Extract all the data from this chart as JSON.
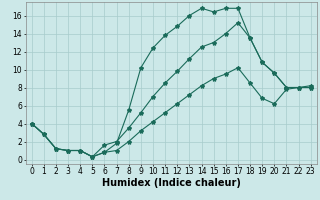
{
  "xlabel": "Humidex (Indice chaleur)",
  "background_color": "#cce8e8",
  "grid_color": "#a8cccc",
  "line_color": "#1a6b5a",
  "xlim": [
    -0.5,
    23.5
  ],
  "ylim": [
    -0.5,
    17.5
  ],
  "xticks": [
    0,
    1,
    2,
    3,
    4,
    5,
    6,
    7,
    8,
    9,
    10,
    11,
    12,
    13,
    14,
    15,
    16,
    17,
    18,
    19,
    20,
    21,
    22,
    23
  ],
  "yticks": [
    0,
    2,
    4,
    6,
    8,
    10,
    12,
    14,
    16
  ],
  "line1_x": [
    0,
    1,
    2,
    3,
    4,
    5,
    6,
    7,
    8,
    9,
    10,
    11,
    12,
    13,
    14,
    15,
    16,
    17,
    18,
    19,
    20,
    21,
    22,
    23
  ],
  "line1_y": [
    4.0,
    2.8,
    1.2,
    1.0,
    1.0,
    0.3,
    0.8,
    1.8,
    5.5,
    10.2,
    12.4,
    13.8,
    14.8,
    16.0,
    16.8,
    16.4,
    16.8,
    16.8,
    13.5,
    10.8,
    9.6,
    8.0,
    8.0,
    8.0
  ],
  "line2_x": [
    0,
    1,
    2,
    3,
    4,
    5,
    6,
    7,
    8,
    9,
    10,
    11,
    12,
    13,
    14,
    15,
    16,
    17,
    18,
    19,
    20,
    21,
    22,
    23
  ],
  "line2_y": [
    4.0,
    2.8,
    1.2,
    1.0,
    1.0,
    0.3,
    1.6,
    2.0,
    3.5,
    5.2,
    7.0,
    8.5,
    9.8,
    11.2,
    12.5,
    13.0,
    14.0,
    15.2,
    13.5,
    10.8,
    9.6,
    8.0,
    8.0,
    8.0
  ],
  "line3_x": [
    0,
    1,
    2,
    3,
    4,
    5,
    6,
    7,
    8,
    9,
    10,
    11,
    12,
    13,
    14,
    15,
    16,
    17,
    18,
    19,
    20,
    21,
    22,
    23
  ],
  "line3_y": [
    4.0,
    2.8,
    1.2,
    1.0,
    1.0,
    0.3,
    0.8,
    1.0,
    2.0,
    3.2,
    4.2,
    5.2,
    6.2,
    7.2,
    8.2,
    9.0,
    9.5,
    10.2,
    8.5,
    6.8,
    6.2,
    7.8,
    8.0,
    8.2
  ],
  "marker": "*",
  "markersize": 3,
  "linewidth": 0.8,
  "xlabel_fontsize": 7,
  "tick_fontsize": 5.5
}
